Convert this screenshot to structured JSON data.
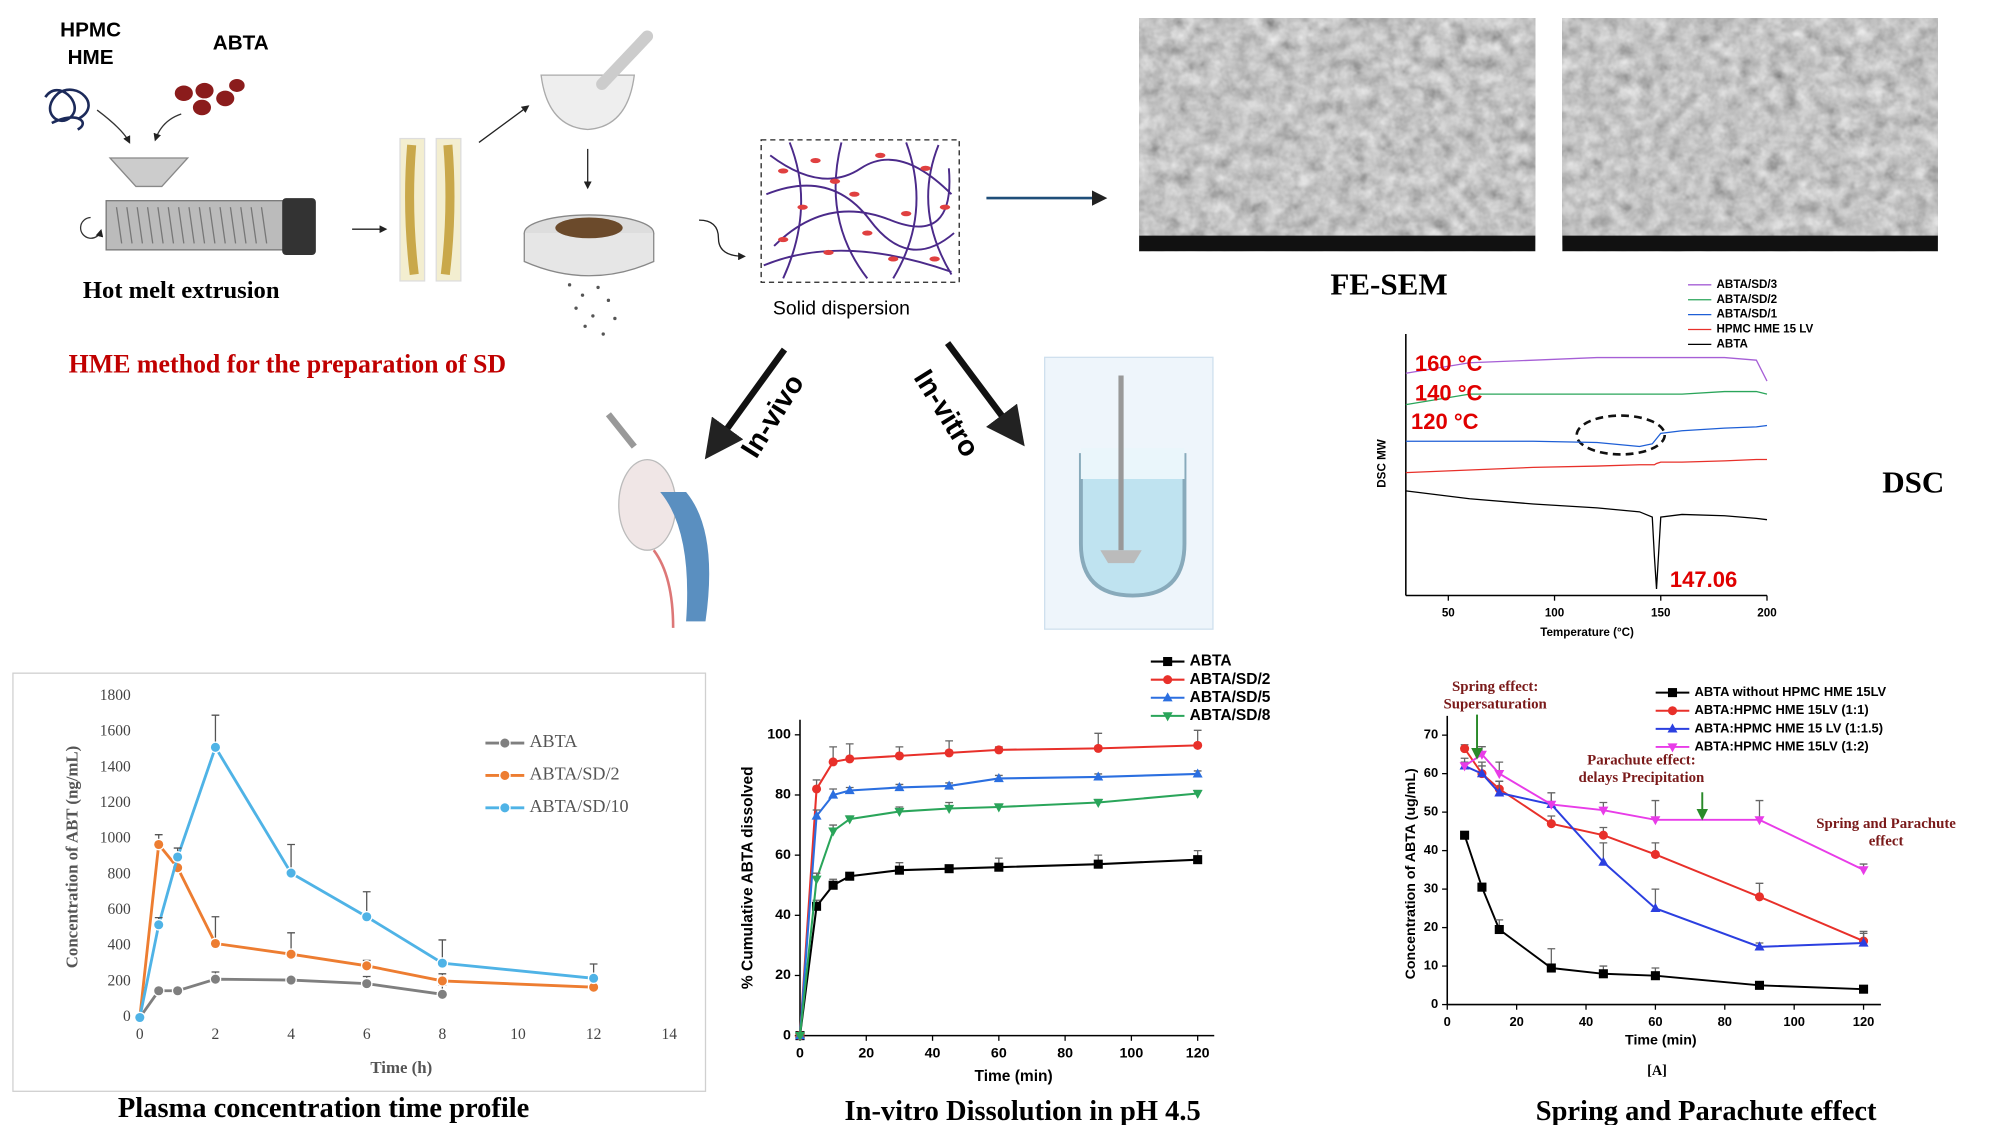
{
  "diagram": {
    "hpmc_lines": [
      "HPMC",
      "HME"
    ],
    "abta": "ABTA",
    "extrusion": "Hot melt extrusion",
    "method": "HME method for the preparation of SD",
    "solid_dispersion": "Solid dispersion",
    "in_vivo": "In-vivo",
    "in_vitro": "In-vitro",
    "fe_sem": "FE-SEM"
  },
  "chart_data": [
    {
      "type": "line",
      "title": "Plasma concentration time profile",
      "xlabel": "Time (h)",
      "ylabel": "Concentration of ABT (ng/mL)",
      "xlim": [
        0,
        14
      ],
      "xticks": [
        0,
        2,
        4,
        6,
        8,
        10,
        12,
        14
      ],
      "ylim": [
        0,
        1800
      ],
      "yticks": [
        0,
        200,
        400,
        600,
        800,
        1000,
        1200,
        1400,
        1600,
        1800
      ],
      "series": [
        {
          "name": "ABTA",
          "color": "#7f7f7f",
          "marker": "circle",
          "x": [
            0,
            0.5,
            1,
            2,
            4,
            6,
            8
          ],
          "values": [
            0,
            150,
            150,
            215,
            210,
            190,
            130
          ],
          "errors": [
            0,
            10,
            10,
            40,
            20,
            40,
            50
          ]
        },
        {
          "name": "ABTA/SD/2",
          "color": "#ed7d31",
          "marker": "circle",
          "x": [
            0,
            0.5,
            1,
            2,
            4,
            6,
            8,
            12
          ],
          "values": [
            0,
            970,
            840,
            415,
            355,
            290,
            205,
            170
          ],
          "errors": [
            0,
            55,
            60,
            150,
            120,
            30,
            40,
            30
          ]
        },
        {
          "name": "ABTA/SD/10",
          "color": "#4fb3e6",
          "marker": "circle",
          "x": [
            0,
            0.5,
            1,
            2,
            4,
            6,
            8,
            12
          ],
          "values": [
            0,
            520,
            900,
            1515,
            810,
            565,
            305,
            220
          ],
          "errors": [
            0,
            40,
            50,
            180,
            160,
            140,
            130,
            80
          ]
        }
      ]
    },
    {
      "type": "line",
      "title": "In-vitro Dissolution in pH 4.5",
      "xlabel": "Time (min)",
      "ylabel": "% Cumulative ABTA dissolved",
      "xlim": [
        0,
        125
      ],
      "xticks": [
        0,
        20,
        40,
        60,
        80,
        100,
        120
      ],
      "ylim": [
        0,
        105
      ],
      "yticks": [
        0,
        20,
        40,
        60,
        80,
        100
      ],
      "series": [
        {
          "name": "ABTA",
          "color": "#000000",
          "marker": "square",
          "x": [
            0,
            5,
            10,
            15,
            30,
            45,
            60,
            90,
            120
          ],
          "values": [
            0,
            43,
            50,
            53,
            55,
            55.5,
            56,
            57,
            58.5
          ],
          "errors": [
            0,
            2,
            2,
            1,
            2.5,
            1,
            3,
            3,
            3
          ]
        },
        {
          "name": "ABTA/SD/2",
          "color": "#e8302a",
          "marker": "circle",
          "x": [
            0,
            5,
            10,
            15,
            30,
            45,
            60,
            90,
            120
          ],
          "values": [
            0,
            82,
            91,
            92,
            93,
            94,
            95,
            95.5,
            96.5
          ],
          "errors": [
            0,
            3,
            5,
            5,
            3,
            4,
            1,
            5,
            5
          ]
        },
        {
          "name": "ABTA/SD/5",
          "color": "#2b6fe0",
          "marker": "triangle",
          "x": [
            0,
            5,
            10,
            15,
            30,
            45,
            60,
            90,
            120
          ],
          "values": [
            0,
            73,
            80,
            81.5,
            82.5,
            83,
            85.5,
            86,
            87
          ],
          "errors": [
            0,
            2,
            2,
            1,
            1,
            1,
            1,
            1,
            1
          ]
        },
        {
          "name": "ABTA/SD/8",
          "color": "#2aa55a",
          "marker": "triangle-down",
          "x": [
            0,
            5,
            10,
            15,
            30,
            45,
            60,
            90,
            120
          ],
          "values": [
            0,
            52,
            68,
            72,
            74.5,
            75.5,
            76,
            77.5,
            80.5
          ],
          "errors": [
            0,
            2,
            2,
            1,
            1.5,
            2,
            1,
            1,
            1
          ]
        }
      ]
    },
    {
      "type": "line",
      "title": "DSC",
      "xlabel": "Temperature (°C)",
      "ylabel": "DSC MW",
      "xlim": [
        30,
        200
      ],
      "xticks": [
        50,
        100,
        150,
        200
      ],
      "ylim": [
        0,
        100
      ],
      "x": [
        30,
        60,
        90,
        120,
        140,
        146,
        147,
        148,
        150,
        160,
        180,
        195,
        200
      ],
      "series": [
        {
          "name": "ABTA/SD/3",
          "color": "#a65fd6",
          "values": [
            85,
            89,
            90,
            91,
            91,
            91,
            91,
            91,
            91,
            91,
            91,
            90,
            82
          ]
        },
        {
          "name": "ABTA/SD/2",
          "color": "#2aa55a",
          "values": [
            73,
            77,
            77,
            77,
            77,
            77,
            77,
            77,
            77,
            77,
            78,
            78,
            77
          ]
        },
        {
          "name": "ABTA/SD/1",
          "color": "#1e5fd6",
          "values": [
            59,
            59,
            59,
            58.5,
            57,
            58,
            59,
            60,
            62,
            63,
            64,
            64.5,
            65
          ]
        },
        {
          "name": "HPMC HME 15 LV",
          "color": "#e8302a",
          "values": [
            47,
            48,
            49,
            49.5,
            50,
            50,
            50,
            50.5,
            51,
            51,
            51.5,
            52,
            52
          ]
        },
        {
          "name": "ABTA",
          "color": "#000000",
          "values": [
            40,
            37,
            35,
            33.5,
            32,
            30,
            15,
            2.5,
            30,
            31,
            30.5,
            29.5,
            29
          ]
        }
      ],
      "annotations": [
        {
          "lines": [
            "160 °C"
          ]
        },
        {
          "lines": [
            "140 °C"
          ]
        },
        {
          "lines": [
            "120 °C"
          ]
        },
        {
          "lines": [
            "147.06"
          ]
        }
      ]
    },
    {
      "type": "line",
      "title": "Spring and Parachute effect",
      "panel_label": "[A]",
      "xlabel": "Time (min)",
      "ylabel": "Concentration of ABTA (ug/mL)",
      "xlim": [
        0,
        125
      ],
      "xticks": [
        0,
        20,
        40,
        60,
        80,
        100,
        120
      ],
      "ylim": [
        0,
        75
      ],
      "yticks": [
        0,
        10,
        20,
        30,
        40,
        50,
        60,
        70
      ],
      "series": [
        {
          "name": "ABTA without HPMC HME 15LV",
          "color": "#000000",
          "marker": "square",
          "x": [
            5,
            10,
            15,
            30,
            45,
            60,
            90,
            120
          ],
          "values": [
            44,
            30.5,
            19.5,
            9.5,
            8,
            7.5,
            5,
            4
          ],
          "errors": [
            0,
            1,
            2.5,
            5,
            2,
            2,
            0.5,
            0.5
          ]
        },
        {
          "name": "ABTA:HPMC HME 15LV (1:1)",
          "color": "#e8302a",
          "marker": "circle",
          "x": [
            5,
            10,
            15,
            30,
            45,
            60,
            90,
            120
          ],
          "values": [
            66.5,
            60,
            56,
            47,
            44,
            39,
            28,
            16.5
          ],
          "errors": [
            1,
            2,
            2,
            2,
            2,
            3,
            3.5,
            2
          ]
        },
        {
          "name": "ABTA:HPMC HME 15 LV (1:1.5)",
          "color": "#2b3fe0",
          "marker": "triangle",
          "x": [
            5,
            10,
            15,
            30,
            45,
            60,
            90,
            120
          ],
          "values": [
            62,
            60,
            55,
            52,
            37,
            25,
            15,
            16
          ],
          "errors": [
            2,
            3,
            3,
            3,
            5,
            5,
            1,
            3
          ]
        },
        {
          "name": "ABTA:HPMC HME 15LV (1:2)",
          "color": "#e83ce8",
          "marker": "triangle-down",
          "x": [
            5,
            10,
            15,
            30,
            45,
            60,
            90,
            120
          ],
          "values": [
            62,
            65,
            60,
            52,
            50.5,
            48,
            48,
            35
          ],
          "errors": [
            1,
            2,
            3,
            3,
            2,
            5,
            5,
            1.5
          ]
        }
      ],
      "annotations": [
        {
          "lines": [
            "Spring effect:",
            "Supersaturation"
          ]
        },
        {
          "lines": [
            "Parachute effect:",
            "delays Precipitation"
          ]
        },
        {
          "lines": [
            "Spring and Parachute",
            "effect"
          ]
        }
      ]
    }
  ]
}
